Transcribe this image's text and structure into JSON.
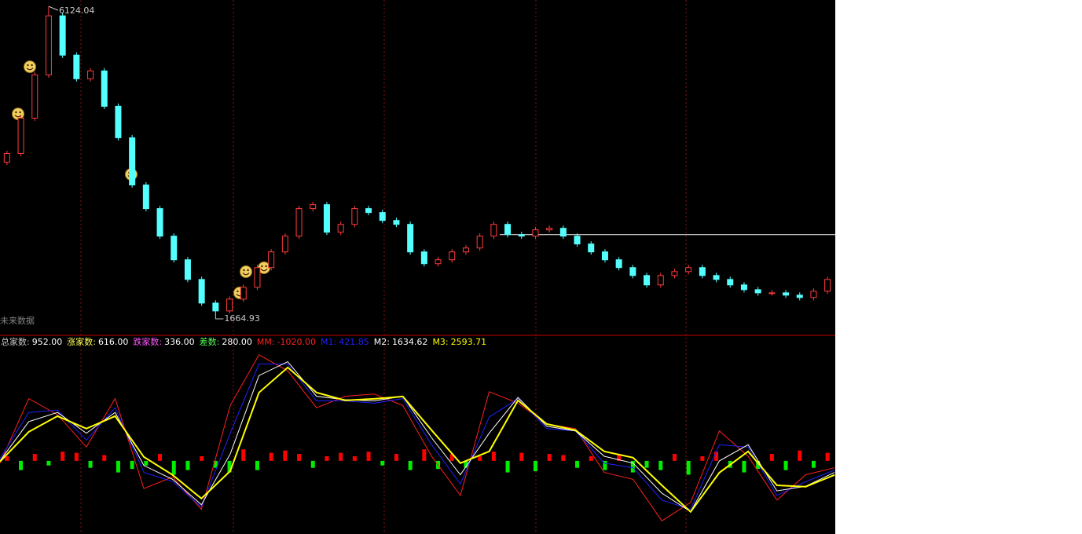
{
  "chart_data": [
    {
      "type": "candlestick",
      "ohlc": [
        [
          3900,
          4064,
          3860,
          4024
        ],
        [
          4024,
          4569,
          3984,
          4529
        ],
        [
          4529,
          5187,
          4489,
          5147
        ],
        [
          5147,
          6124.04,
          5107,
          5989
        ],
        [
          5989,
          6029,
          5388,
          5428
        ],
        [
          5428,
          5468,
          5051,
          5091
        ],
        [
          5091,
          5243,
          5051,
          5203
        ],
        [
          5203,
          5243,
          4658,
          4698
        ],
        [
          4698,
          4738,
          4209,
          4249
        ],
        [
          4249,
          4289,
          3535,
          3575
        ],
        [
          3575,
          3615,
          3198,
          3238
        ],
        [
          3238,
          3278,
          2805,
          2845
        ],
        [
          2845,
          2885,
          2468,
          2508
        ],
        [
          2508,
          2548,
          2187,
          2227
        ],
        [
          2227,
          2267,
          1850,
          1890
        ],
        [
          1890,
          1930,
          1664.93,
          1778
        ],
        [
          1778,
          1986,
          1738,
          1946
        ],
        [
          1946,
          2155,
          1906,
          2115
        ],
        [
          2115,
          2436,
          2075,
          2396
        ],
        [
          2396,
          2660,
          2356,
          2620
        ],
        [
          2620,
          2885,
          2580,
          2845
        ],
        [
          2845,
          3278,
          2805,
          3238
        ],
        [
          3238,
          3334,
          3198,
          3294
        ],
        [
          3294,
          3334,
          2861,
          2901
        ],
        [
          2901,
          3053,
          2861,
          3013
        ],
        [
          3013,
          3278,
          2973,
          3238
        ],
        [
          3238,
          3278,
          3142,
          3182
        ],
        [
          3182,
          3222,
          3029,
          3069
        ],
        [
          3069,
          3109,
          2973,
          3013
        ],
        [
          3013,
          3053,
          2580,
          2620
        ],
        [
          2620,
          2660,
          2412,
          2452
        ],
        [
          2452,
          2548,
          2412,
          2508
        ],
        [
          2508,
          2660,
          2468,
          2620
        ],
        [
          2620,
          2716,
          2580,
          2676
        ],
        [
          2676,
          2885,
          2636,
          2845
        ],
        [
          2845,
          3053,
          2805,
          3013
        ],
        [
          3013,
          3053,
          2827,
          2867
        ],
        [
          2867,
          2907,
          2805,
          2845
        ],
        [
          2845,
          2975,
          2805,
          2935
        ],
        [
          2935,
          2997,
          2895,
          2957
        ],
        [
          2957,
          2997,
          2805,
          2845
        ],
        [
          2845,
          2885,
          2693,
          2733
        ],
        [
          2733,
          2773,
          2580,
          2620
        ],
        [
          2620,
          2660,
          2468,
          2508
        ],
        [
          2508,
          2548,
          2356,
          2396
        ],
        [
          2396,
          2436,
          2243,
          2283
        ],
        [
          2283,
          2323,
          2109,
          2149
        ],
        [
          2149,
          2323,
          2109,
          2283
        ],
        [
          2283,
          2379,
          2243,
          2339
        ],
        [
          2339,
          2436,
          2299,
          2396
        ],
        [
          2396,
          2436,
          2243,
          2283
        ],
        [
          2283,
          2323,
          2187,
          2227
        ],
        [
          2227,
          2267,
          2109,
          2149
        ],
        [
          2149,
          2189,
          2041,
          2081
        ],
        [
          2081,
          2121,
          1996,
          2036
        ],
        [
          2036,
          2076,
          1996,
          2036
        ],
        [
          2036,
          2076,
          1963,
          2003
        ],
        [
          2003,
          2043,
          1929,
          1969
        ],
        [
          1969,
          2099,
          1929,
          2059
        ],
        [
          2059,
          2267,
          2019,
          2227
        ]
      ],
      "up_color": "#ff3c3c",
      "down_color": "#54ffff",
      "ylim": [
        1620,
        6170
      ],
      "level": 2867,
      "watermark": "未来数据"
    },
    {
      "type": "line",
      "ylim": [
        -3000,
        5000
      ],
      "stats": [
        {
          "name": "总家数:",
          "value": "952.00",
          "color": "#c8c8c8"
        },
        {
          "name": "涨家数:",
          "value": "616.00",
          "color": "#ffff54"
        },
        {
          "name": "跌家数:",
          "value": "336.00",
          "color": "#ff54ff"
        },
        {
          "name": "差数:",
          "value": "280.00",
          "color": "#54ff54"
        },
        {
          "name": "MM:",
          "value": "-1020.00",
          "color": "#ff2020"
        },
        {
          "name": "M1:",
          "value": "421.85",
          "color": "#2020ff"
        },
        {
          "name": "M2:",
          "value": "1634.62",
          "color": "#ffffff"
        },
        {
          "name": "M3:",
          "value": "2593.71",
          "color": "#ffff00"
        }
      ],
      "series": [
        {
          "color": "#ff2020",
          "values": [
            -100,
            2700,
            2000,
            600,
            2700,
            -1200,
            -700,
            -2100,
            2400,
            4600,
            3900,
            2300,
            2800,
            2900,
            2400,
            200,
            -1500,
            3000,
            2500,
            1600,
            1400,
            -500,
            -800,
            -2600,
            -1800,
            1300,
            200,
            -1700,
            -600,
            -300
          ]
        },
        {
          "color": "#2020ff",
          "values": [
            100,
            2100,
            2200,
            900,
            2300,
            -500,
            -900,
            -2000,
            1200,
            4200,
            4200,
            2600,
            2600,
            2500,
            2700,
            700,
            -1000,
            1900,
            2700,
            1400,
            1300,
            -100,
            -300,
            -1700,
            -2100,
            700,
            600,
            -1500,
            -900,
            -400
          ]
        },
        {
          "color": "#ffffff",
          "values": [
            0,
            1700,
            2100,
            1200,
            2100,
            -200,
            -800,
            -1900,
            300,
            3700,
            4300,
            2800,
            2650,
            2600,
            2800,
            1000,
            -600,
            1200,
            2750,
            1500,
            1300,
            200,
            -100,
            -1400,
            -2200,
            0,
            700,
            -1300,
            -1100,
            -500
          ]
        },
        {
          "color": "#ffff00",
          "values": [
            -30,
            1260,
            1940,
            1400,
            1940,
            170,
            -610,
            -1630,
            -440,
            2960,
            4050,
            2960,
            2620,
            2690,
            2790,
            1330,
            -100,
            410,
            2620,
            1600,
            1330,
            410,
            140,
            -1060,
            -2210,
            -510,
            410,
            -1060,
            -1120,
            -610
          ]
        }
      ],
      "bars": {
        "up_color": "#ff0000",
        "down_color": "#00ee00",
        "values": [
          200,
          -400,
          300,
          -200,
          400,
          350,
          -300,
          250,
          -500,
          -350,
          -200,
          300,
          -600,
          -400,
          200,
          -300,
          -500,
          500,
          -400,
          350,
          450,
          300,
          -300,
          200,
          350,
          200,
          400,
          -200,
          300,
          -400,
          500,
          -350,
          300,
          -300,
          200,
          400,
          -500,
          350,
          -450,
          300,
          250,
          -300,
          200,
          -400,
          300,
          -500,
          -300,
          -400,
          300,
          -600,
          200,
          400,
          -300,
          -500,
          -350,
          300,
          -400,
          450,
          -300,
          350
        ]
      }
    }
  ]
}
